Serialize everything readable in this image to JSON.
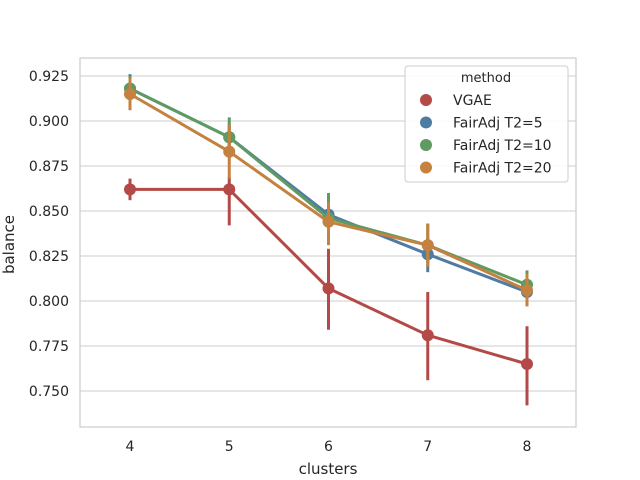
{
  "chart_data": {
    "type": "line",
    "xlabel": "clusters",
    "ylabel": "balance",
    "categories": [
      "4",
      "5",
      "6",
      "7",
      "8"
    ],
    "ylim": [
      0.73,
      0.935
    ],
    "yticks": [
      "0.750",
      "0.775",
      "0.800",
      "0.825",
      "0.850",
      "0.875",
      "0.900",
      "0.925"
    ],
    "grid": true,
    "legend_title": "method",
    "legend_position": "top-right",
    "series": [
      {
        "name": "VGAE",
        "color": "#b34a48",
        "values": [
          0.862,
          0.862,
          0.807,
          0.781,
          0.765
        ],
        "err_low": [
          0.856,
          0.842,
          0.784,
          0.756,
          0.742
        ],
        "err_high": [
          0.868,
          0.869,
          0.829,
          0.805,
          0.786
        ]
      },
      {
        "name": "FairAdj T2=5",
        "color": "#4f7ca2",
        "values": [
          0.918,
          0.891,
          0.848,
          0.826,
          0.805
        ],
        "err_low": [
          0.911,
          0.884,
          0.84,
          0.816,
          0.799
        ],
        "err_high": [
          0.926,
          0.898,
          0.855,
          0.835,
          0.812
        ]
      },
      {
        "name": "FairAdj T2=10",
        "color": "#5f9a62",
        "values": [
          0.918,
          0.891,
          0.846,
          0.831,
          0.809
        ],
        "err_low": [
          0.911,
          0.881,
          0.834,
          0.821,
          0.801
        ],
        "err_high": [
          0.925,
          0.902,
          0.86,
          0.843,
          0.817
        ]
      },
      {
        "name": "FairAdj T2=20",
        "color": "#c5813f",
        "values": [
          0.915,
          0.883,
          0.844,
          0.831,
          0.806
        ],
        "err_low": [
          0.906,
          0.868,
          0.831,
          0.819,
          0.797
        ],
        "err_high": [
          0.924,
          0.898,
          0.855,
          0.843,
          0.815
        ]
      }
    ]
  }
}
